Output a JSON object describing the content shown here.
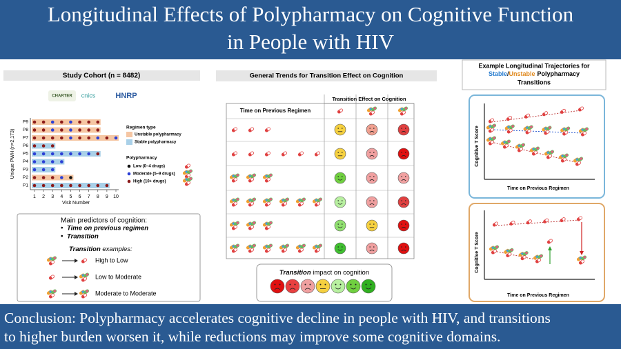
{
  "header": {
    "title_lines": [
      "Longitudinal Effects of Polypharmacy on Cognitive Function",
      "in People with HIV"
    ]
  },
  "cohort": {
    "title": "Study Cohort (n = 8482)",
    "logos": [
      "CHARTER",
      "cnics",
      "HNRP"
    ],
    "y_axis_title": "Unique PWH (n=2,173)",
    "x_axis_title": "Visit Number",
    "xlim": [
      1,
      10
    ],
    "xticks": [
      1,
      2,
      3,
      4,
      5,
      6,
      7,
      8,
      9,
      10
    ],
    "legend": {
      "regimen_title": "Regimen type",
      "unstable": {
        "label": "Unstable polypharmacy",
        "color": "#f5c6a3"
      },
      "stable": {
        "label": "Stable polypharmacy",
        "color": "#a9d0e8"
      },
      "poly_title": "Polypharmacy",
      "levels": [
        {
          "label": "Low (0–4 drugs)",
          "color": "#111111"
        },
        {
          "label": "Moderate (5–9 drugs)",
          "color": "#2b3fd6"
        },
        {
          "label": "High (10+ drugs)",
          "color": "#8b1a1a"
        }
      ]
    },
    "participants": [
      {
        "label": "P9",
        "regimen": "unstable",
        "visits": [
          1,
          2,
          3,
          4,
          5,
          6,
          7,
          8
        ],
        "levels": [
          2,
          2,
          1,
          2,
          1,
          2,
          2,
          2
        ]
      },
      {
        "label": "P8",
        "regimen": "unstable",
        "visits": [
          1,
          2,
          3,
          4,
          5,
          6,
          7,
          8
        ],
        "levels": [
          2,
          2,
          1,
          2,
          1,
          2,
          2,
          2
        ]
      },
      {
        "label": "P7",
        "regimen": "unstable",
        "visits": [
          1,
          2,
          3,
          4,
          5,
          6,
          7,
          8,
          9,
          10
        ],
        "levels": [
          2,
          2,
          2,
          2,
          1,
          2,
          2,
          1,
          2,
          1
        ]
      },
      {
        "label": "P6",
        "regimen": "stable",
        "visits": [
          1,
          2,
          3
        ],
        "levels": [
          2,
          2,
          2
        ]
      },
      {
        "label": "P5",
        "regimen": "stable",
        "visits": [
          1,
          2,
          3,
          4,
          5,
          6,
          7,
          8
        ],
        "levels": [
          1,
          1,
          1,
          1,
          1,
          1,
          1,
          2
        ]
      },
      {
        "label": "P4",
        "regimen": "stable",
        "visits": [
          1,
          2,
          3,
          4
        ],
        "levels": [
          1,
          1,
          1,
          1
        ]
      },
      {
        "label": "P3",
        "regimen": "stable",
        "visits": [
          1,
          2,
          3
        ],
        "levels": [
          1,
          1,
          1
        ]
      },
      {
        "label": "P2",
        "regimen": "unstable",
        "visits": [
          1,
          2,
          3,
          4,
          5
        ],
        "levels": [
          2,
          2,
          2,
          1,
          0
        ]
      },
      {
        "label": "P1",
        "regimen": "stable",
        "visits": [
          1,
          2,
          3,
          4,
          5,
          6,
          7,
          8,
          9
        ],
        "levels": [
          2,
          2,
          2,
          2,
          2,
          2,
          2,
          2,
          2
        ]
      }
    ]
  },
  "predictors": {
    "heading": "Main predictors of cognition:",
    "items": [
      "Time on previous regimen",
      "Transition"
    ],
    "examples_word": "Transition",
    "examples_rest": " examples:",
    "examples": [
      "High to Low",
      "Low to Moderate",
      "Moderate to Moderate"
    ]
  },
  "trends": {
    "title": "General Trends for Transition Effect on Cognition",
    "col_header": "Transition Effect on Cognition",
    "row_header": "Time on Previous Regimen"
  },
  "impact": {
    "word": "Transition",
    "rest": " impact on cognition"
  },
  "trajectories": {
    "title_prefix": "Example Longitudinal Trajectories for",
    "stable": "Stable",
    "sep": "/",
    "unstable": "Unstable",
    "suffix": "Polypharmacy",
    "last": "Transitions",
    "y_axis_title": "Cognitive T Score",
    "x_axis_title": "Time on Previous Regimen"
  },
  "conclusion": {
    "lines": [
      "Conclusion: Polypharmacy accelerates cognitive decline in people with HIV, and transitions",
      "to higher burden worsen it, while reductions may improve some cognitive domains."
    ]
  }
}
